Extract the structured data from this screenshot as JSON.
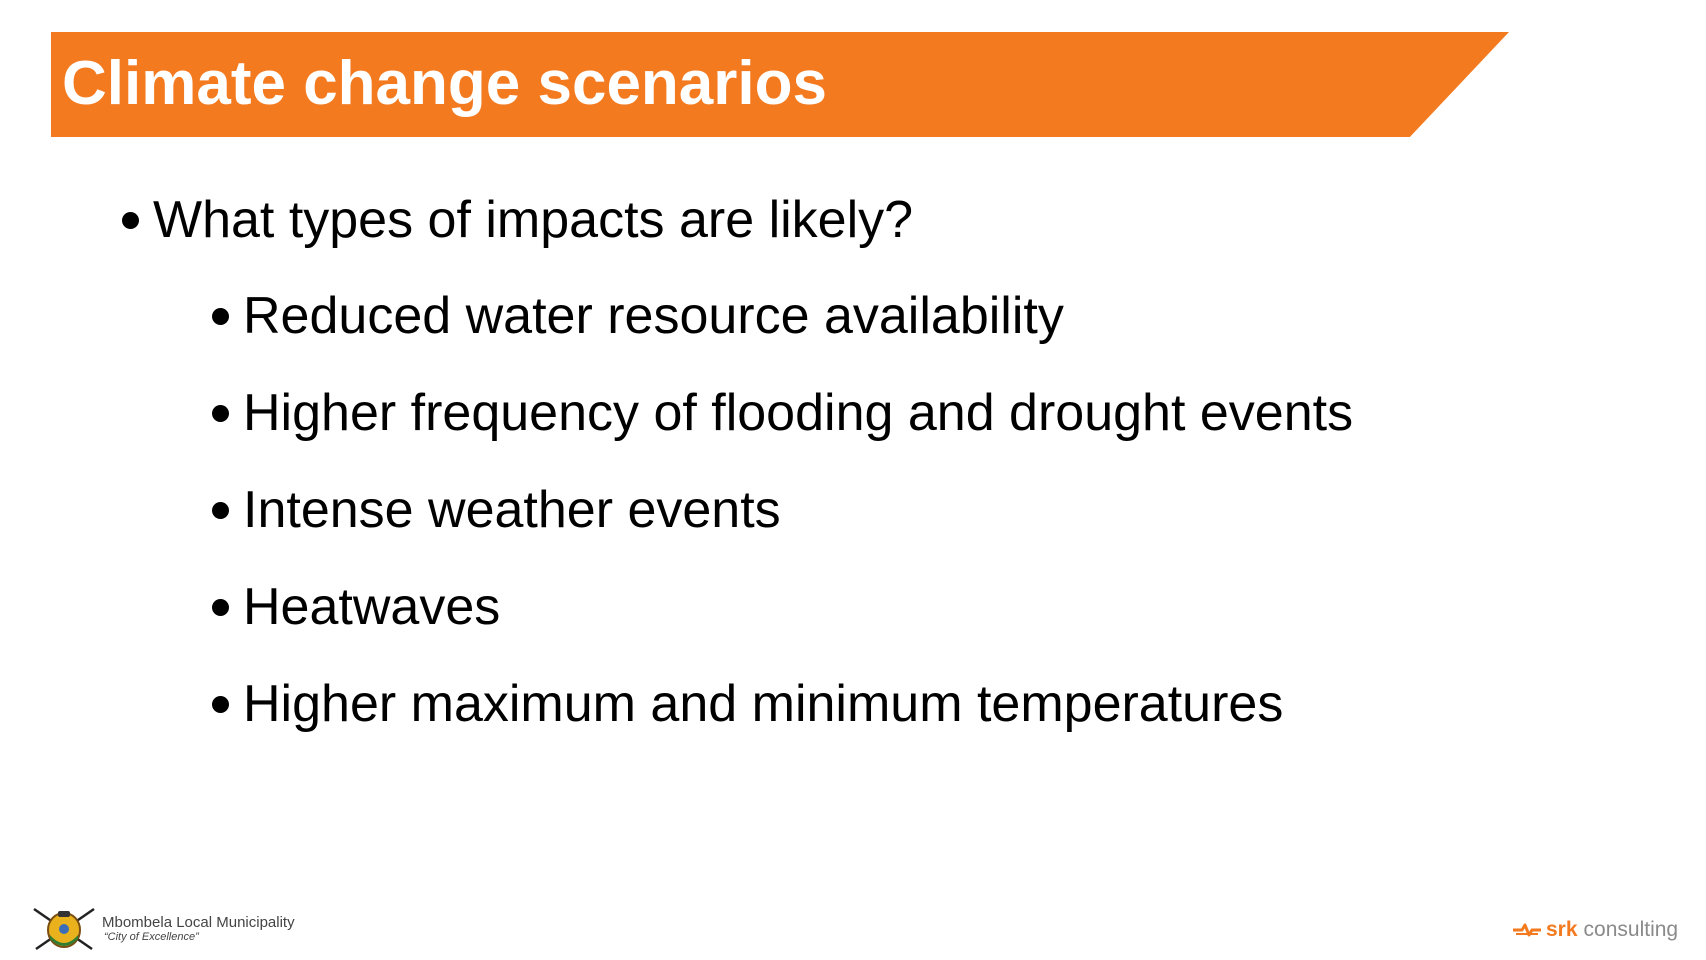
{
  "slide": {
    "title": "Climate change scenarios",
    "colors": {
      "accent": "#f47a1f",
      "text": "#000000",
      "background": "#ffffff"
    },
    "bullets": [
      {
        "level": 1,
        "text": "What types of impacts are likely?"
      },
      {
        "level": 2,
        "text": "Reduced water resource availability"
      },
      {
        "level": 2,
        "text": "Higher frequency of flooding and drought events"
      },
      {
        "level": 2,
        "text": "Intense weather events"
      },
      {
        "level": 2,
        "text": "Heatwaves"
      },
      {
        "level": 2,
        "text": "Higher maximum and minimum temperatures"
      }
    ]
  },
  "footer": {
    "municipality": {
      "name": "Mbombela Local Municipality",
      "motto": "“City of Excellence”",
      "icon": "municipality-coat-of-arms-icon"
    },
    "company": {
      "name": "srk",
      "suffix": "consulting",
      "icon": "srk-logo-icon"
    }
  }
}
